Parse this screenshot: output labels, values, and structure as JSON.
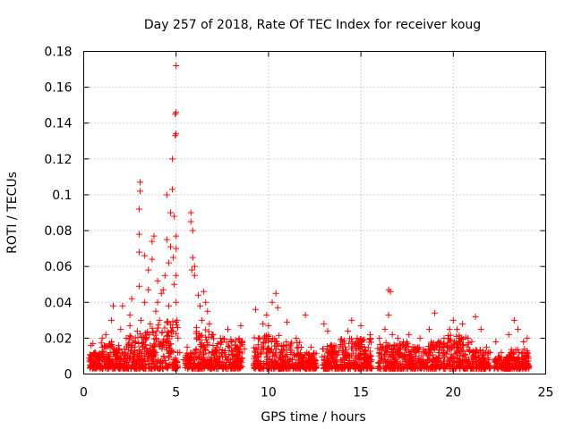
{
  "chart_data": {
    "type": "scatter",
    "title": "Day 257 of 2018, Rate Of TEC Index for receiver koug",
    "xlabel": "GPS time / hours",
    "ylabel": "ROTI / TECUs",
    "xlim": [
      0,
      25
    ],
    "ylim": [
      0,
      0.18
    ],
    "xticks": [
      0,
      5,
      10,
      15,
      20,
      25
    ],
    "xtick_labels": [
      "0",
      "5",
      "10",
      "15",
      "20",
      "25"
    ],
    "yticks": [
      0,
      0.02,
      0.04,
      0.06,
      0.08,
      0.1,
      0.12,
      0.14,
      0.16,
      0.18
    ],
    "ytick_labels": [
      "0",
      "0.02",
      "0.04",
      "0.06",
      "0.08",
      "0.1",
      "0.12",
      "0.14",
      "0.16",
      "0.18"
    ],
    "grid": true,
    "marker": "+",
    "series": [
      {
        "name": "ROTI",
        "color": "#ff0000",
        "points": [
          [
            0.4,
            0.016
          ],
          [
            0.4,
            0.008
          ],
          [
            0.5,
            0.005
          ],
          [
            0.6,
            0.012
          ],
          [
            0.5,
            0.017
          ],
          [
            0.7,
            0.006
          ],
          [
            0.8,
            0.009
          ],
          [
            0.9,
            0.004
          ],
          [
            1.0,
            0.012
          ],
          [
            1.0,
            0.02
          ],
          [
            1.1,
            0.007
          ],
          [
            1.2,
            0.015
          ],
          [
            1.2,
            0.022
          ],
          [
            1.3,
            0.01
          ],
          [
            1.4,
            0.005
          ],
          [
            1.5,
            0.03
          ],
          [
            1.5,
            0.018
          ],
          [
            1.6,
            0.038
          ],
          [
            1.7,
            0.012
          ],
          [
            1.8,
            0.008
          ],
          [
            1.9,
            0.016
          ],
          [
            2.0,
            0.025
          ],
          [
            2.0,
            0.006
          ],
          [
            2.1,
            0.038
          ],
          [
            2.2,
            0.014
          ],
          [
            2.3,
            0.02
          ],
          [
            2.4,
            0.009
          ],
          [
            2.5,
            0.033
          ],
          [
            2.5,
            0.027
          ],
          [
            2.6,
            0.042
          ],
          [
            2.7,
            0.012
          ],
          [
            2.8,
            0.018
          ],
          [
            2.9,
            0.024
          ],
          [
            3.0,
            0.049
          ],
          [
            3.0,
            0.068
          ],
          [
            3.0,
            0.078
          ],
          [
            3.0,
            0.092
          ],
          [
            3.05,
            0.102
          ],
          [
            3.05,
            0.107
          ],
          [
            3.1,
            0.03
          ],
          [
            3.2,
            0.015
          ],
          [
            3.3,
            0.066
          ],
          [
            3.3,
            0.04
          ],
          [
            3.4,
            0.02
          ],
          [
            3.5,
            0.058
          ],
          [
            3.5,
            0.047
          ],
          [
            3.6,
            0.028
          ],
          [
            3.7,
            0.064
          ],
          [
            3.7,
            0.074
          ],
          [
            3.8,
            0.077
          ],
          [
            3.9,
            0.035
          ],
          [
            3.9,
            0.012
          ],
          [
            4.0,
            0.052
          ],
          [
            4.0,
            0.04
          ],
          [
            4.1,
            0.03
          ],
          [
            4.2,
            0.045
          ],
          [
            4.3,
            0.047
          ],
          [
            4.4,
            0.055
          ],
          [
            4.5,
            0.1
          ],
          [
            4.5,
            0.075
          ],
          [
            4.6,
            0.062
          ],
          [
            4.6,
            0.038
          ],
          [
            4.7,
            0.071
          ],
          [
            4.7,
            0.09
          ],
          [
            4.8,
            0.103
          ],
          [
            4.8,
            0.12
          ],
          [
            4.85,
            0.065
          ],
          [
            4.9,
            0.088
          ],
          [
            4.9,
            0.05
          ],
          [
            4.95,
            0.133
          ],
          [
            4.95,
            0.145
          ],
          [
            5.0,
            0.172
          ],
          [
            5.0,
            0.134
          ],
          [
            5.0,
            0.146
          ],
          [
            5.0,
            0.077
          ],
          [
            5.0,
            0.07
          ],
          [
            5.0,
            0.055
          ],
          [
            5.0,
            0.04
          ],
          [
            5.05,
            0.03
          ],
          [
            5.1,
            0.02
          ],
          [
            5.2,
            0.012
          ],
          [
            5.4,
            0.008
          ],
          [
            5.5,
            0.006
          ],
          [
            5.6,
            0.015
          ],
          [
            5.8,
            0.09
          ],
          [
            5.8,
            0.085
          ],
          [
            5.9,
            0.08
          ],
          [
            5.9,
            0.065
          ],
          [
            6.0,
            0.06
          ],
          [
            6.0,
            0.055
          ],
          [
            5.85,
            0.058
          ],
          [
            6.1,
            0.026
          ],
          [
            6.2,
            0.044
          ],
          [
            6.3,
            0.038
          ],
          [
            6.4,
            0.03
          ],
          [
            6.5,
            0.046
          ],
          [
            6.6,
            0.04
          ],
          [
            6.7,
            0.035
          ],
          [
            6.8,
            0.028
          ],
          [
            7.0,
            0.022
          ],
          [
            7.2,
            0.015
          ],
          [
            7.4,
            0.02
          ],
          [
            7.6,
            0.012
          ],
          [
            7.8,
            0.025
          ],
          [
            8.0,
            0.018
          ],
          [
            8.2,
            0.01
          ],
          [
            8.5,
            0.027
          ],
          [
            8.7,
            0.014
          ],
          [
            9.3,
            0.036
          ],
          [
            9.5,
            0.02
          ],
          [
            9.7,
            0.028
          ],
          [
            9.9,
            0.033
          ],
          [
            10.0,
            0.027
          ],
          [
            10.2,
            0.04
          ],
          [
            10.4,
            0.045
          ],
          [
            10.5,
            0.037
          ],
          [
            10.7,
            0.016
          ],
          [
            11.0,
            0.029
          ],
          [
            11.2,
            0.012
          ],
          [
            11.5,
            0.02
          ],
          [
            11.7,
            0.01
          ],
          [
            12.0,
            0.033
          ],
          [
            12.3,
            0.015
          ],
          [
            12.5,
            0.008
          ],
          [
            13.0,
            0.028
          ],
          [
            13.2,
            0.024
          ],
          [
            13.5,
            0.012
          ],
          [
            14.0,
            0.018
          ],
          [
            14.3,
            0.024
          ],
          [
            14.5,
            0.03
          ],
          [
            14.8,
            0.02
          ],
          [
            15.0,
            0.027
          ],
          [
            15.2,
            0.015
          ],
          [
            15.5,
            0.022
          ],
          [
            16.0,
            0.02
          ],
          [
            16.3,
            0.025
          ],
          [
            16.5,
            0.047
          ],
          [
            16.6,
            0.046
          ],
          [
            16.5,
            0.033
          ],
          [
            16.7,
            0.022
          ],
          [
            17.0,
            0.02
          ],
          [
            17.3,
            0.018
          ],
          [
            17.6,
            0.022
          ],
          [
            17.9,
            0.015
          ],
          [
            18.2,
            0.02
          ],
          [
            18.5,
            0.012
          ],
          [
            18.7,
            0.025
          ],
          [
            19.0,
            0.034
          ],
          [
            19.2,
            0.018
          ],
          [
            19.5,
            0.02
          ],
          [
            19.8,
            0.025
          ],
          [
            20.0,
            0.03
          ],
          [
            20.2,
            0.025
          ],
          [
            20.5,
            0.028
          ],
          [
            20.8,
            0.02
          ],
          [
            21.0,
            0.018
          ],
          [
            21.2,
            0.032
          ],
          [
            21.5,
            0.025
          ],
          [
            21.8,
            0.015
          ],
          [
            22.0,
            0.012
          ],
          [
            22.3,
            0.018
          ],
          [
            22.6,
            0.012
          ],
          [
            23.0,
            0.022
          ],
          [
            23.3,
            0.03
          ],
          [
            23.5,
            0.025
          ],
          [
            23.8,
            0.018
          ],
          [
            24.0,
            0.02
          ],
          [
            24.0,
            0.012
          ]
        ],
        "dense_bands": [
          [
            0.3,
            0.8,
            0.003,
            0.012
          ],
          [
            0.8,
            1.6,
            0.003,
            0.018
          ],
          [
            1.6,
            2.4,
            0.003,
            0.016
          ],
          [
            2.4,
            3.0,
            0.003,
            0.022
          ],
          [
            3.0,
            3.6,
            0.003,
            0.025
          ],
          [
            3.6,
            4.3,
            0.003,
            0.028
          ],
          [
            4.3,
            5.1,
            0.003,
            0.03
          ],
          [
            5.5,
            6.0,
            0.003,
            0.012
          ],
          [
            6.0,
            7.0,
            0.003,
            0.025
          ],
          [
            7.0,
            8.6,
            0.003,
            0.02
          ],
          [
            9.2,
            10.6,
            0.003,
            0.022
          ],
          [
            10.6,
            11.8,
            0.003,
            0.018
          ],
          [
            11.8,
            12.6,
            0.003,
            0.012
          ],
          [
            12.9,
            13.8,
            0.003,
            0.016
          ],
          [
            13.8,
            15.6,
            0.003,
            0.02
          ],
          [
            15.9,
            17.6,
            0.003,
            0.018
          ],
          [
            17.6,
            18.6,
            0.003,
            0.015
          ],
          [
            18.6,
            19.6,
            0.003,
            0.018
          ],
          [
            19.6,
            21.0,
            0.003,
            0.022
          ],
          [
            21.0,
            22.0,
            0.003,
            0.014
          ],
          [
            22.2,
            23.0,
            0.003,
            0.01
          ],
          [
            23.0,
            24.1,
            0.003,
            0.014
          ]
        ]
      }
    ]
  }
}
